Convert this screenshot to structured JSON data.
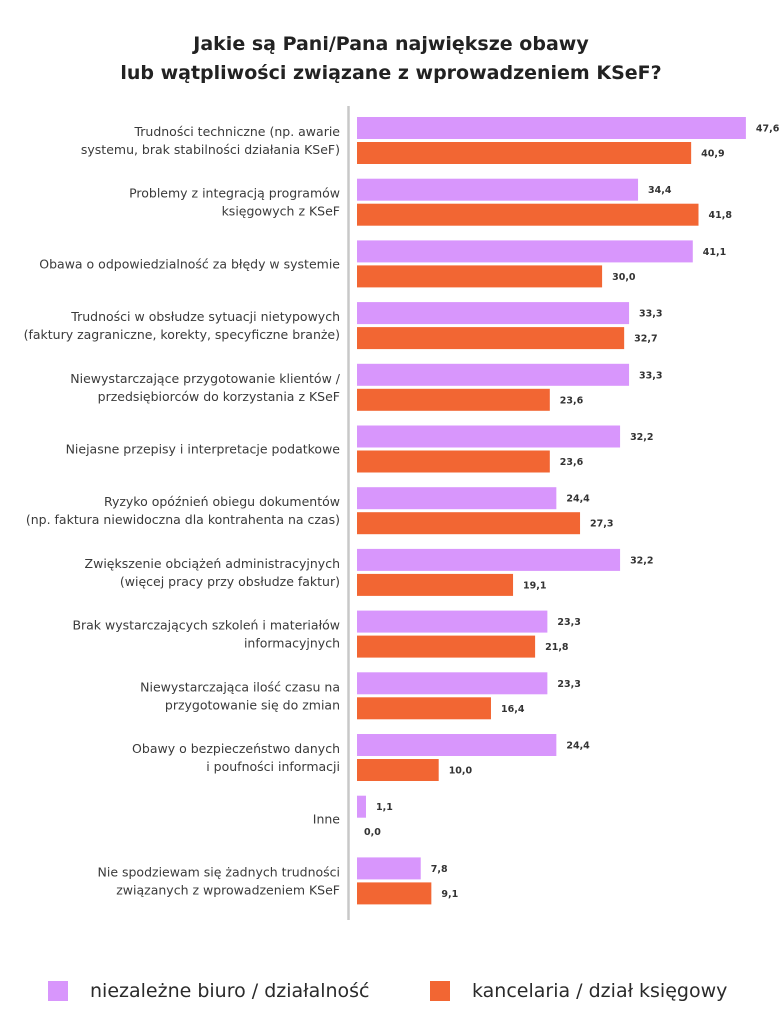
{
  "chart_data": {
    "type": "bar",
    "orientation": "horizontal",
    "title": [
      "Jakie są Pani/Pana największe obawy",
      "lub wątpliwości związane z wprowadzeniem KSeF?"
    ],
    "xlabel": "",
    "ylabel": "",
    "xlim": [
      0,
      50
    ],
    "grid": false,
    "legend_position": "bottom",
    "categories": [
      [
        "Trudności techniczne (np. awarie",
        "systemu, brak stabilności działania KSeF)"
      ],
      [
        "Problemy z integracją programów",
        "księgowych z KSeF"
      ],
      [
        "Obawa o odpowiedzialność za błędy w systemie"
      ],
      [
        "Trudności w obsłudze sytuacji nietypowych",
        "(faktury zagraniczne, korekty, specyficzne branże)"
      ],
      [
        "Niewystarczające przygotowanie klientów /",
        "przedsiębiorców do korzystania z KSeF"
      ],
      [
        "Niejasne przepisy i interpretacje podatkowe"
      ],
      [
        "Ryzyko opóźnień obiegu dokumentów",
        "(np. faktura niewidoczna dla kontrahenta na czas)"
      ],
      [
        "Zwiększenie obciążeń administracyjnych",
        "(więcej pracy przy obsłudze faktur)"
      ],
      [
        "Brak wystarczających szkoleń i materiałów",
        "informacyjnych"
      ],
      [
        "Niewystarczająca ilość czasu na",
        "przygotowanie się do zmian"
      ],
      [
        "Obawy o bezpieczeństwo danych",
        "i poufności informacji"
      ],
      [
        "Inne"
      ],
      [
        "Nie spodziewam się żadnych trudności",
        "związanych z wprowadzeniem KSeF"
      ]
    ],
    "series": [
      {
        "name": "niezależne biuro / działalność",
        "color": "#d896fc",
        "values": [
          47.6,
          34.4,
          41.1,
          33.3,
          33.3,
          32.2,
          24.4,
          32.2,
          23.3,
          23.3,
          24.4,
          1.1,
          7.8
        ]
      },
      {
        "name": "kancelaria / dział księgowy",
        "color": "#f26633",
        "values": [
          40.9,
          41.8,
          30.0,
          32.7,
          23.6,
          23.6,
          27.3,
          19.1,
          21.8,
          16.4,
          10.0,
          0.0,
          9.1
        ]
      }
    ],
    "decimal_separator": ","
  },
  "legend": {
    "items": [
      {
        "label": "niezależne biuro / działalność",
        "color": "#d896fc"
      },
      {
        "label": "kancelaria / dział księgowy",
        "color": "#f26633"
      }
    ]
  }
}
